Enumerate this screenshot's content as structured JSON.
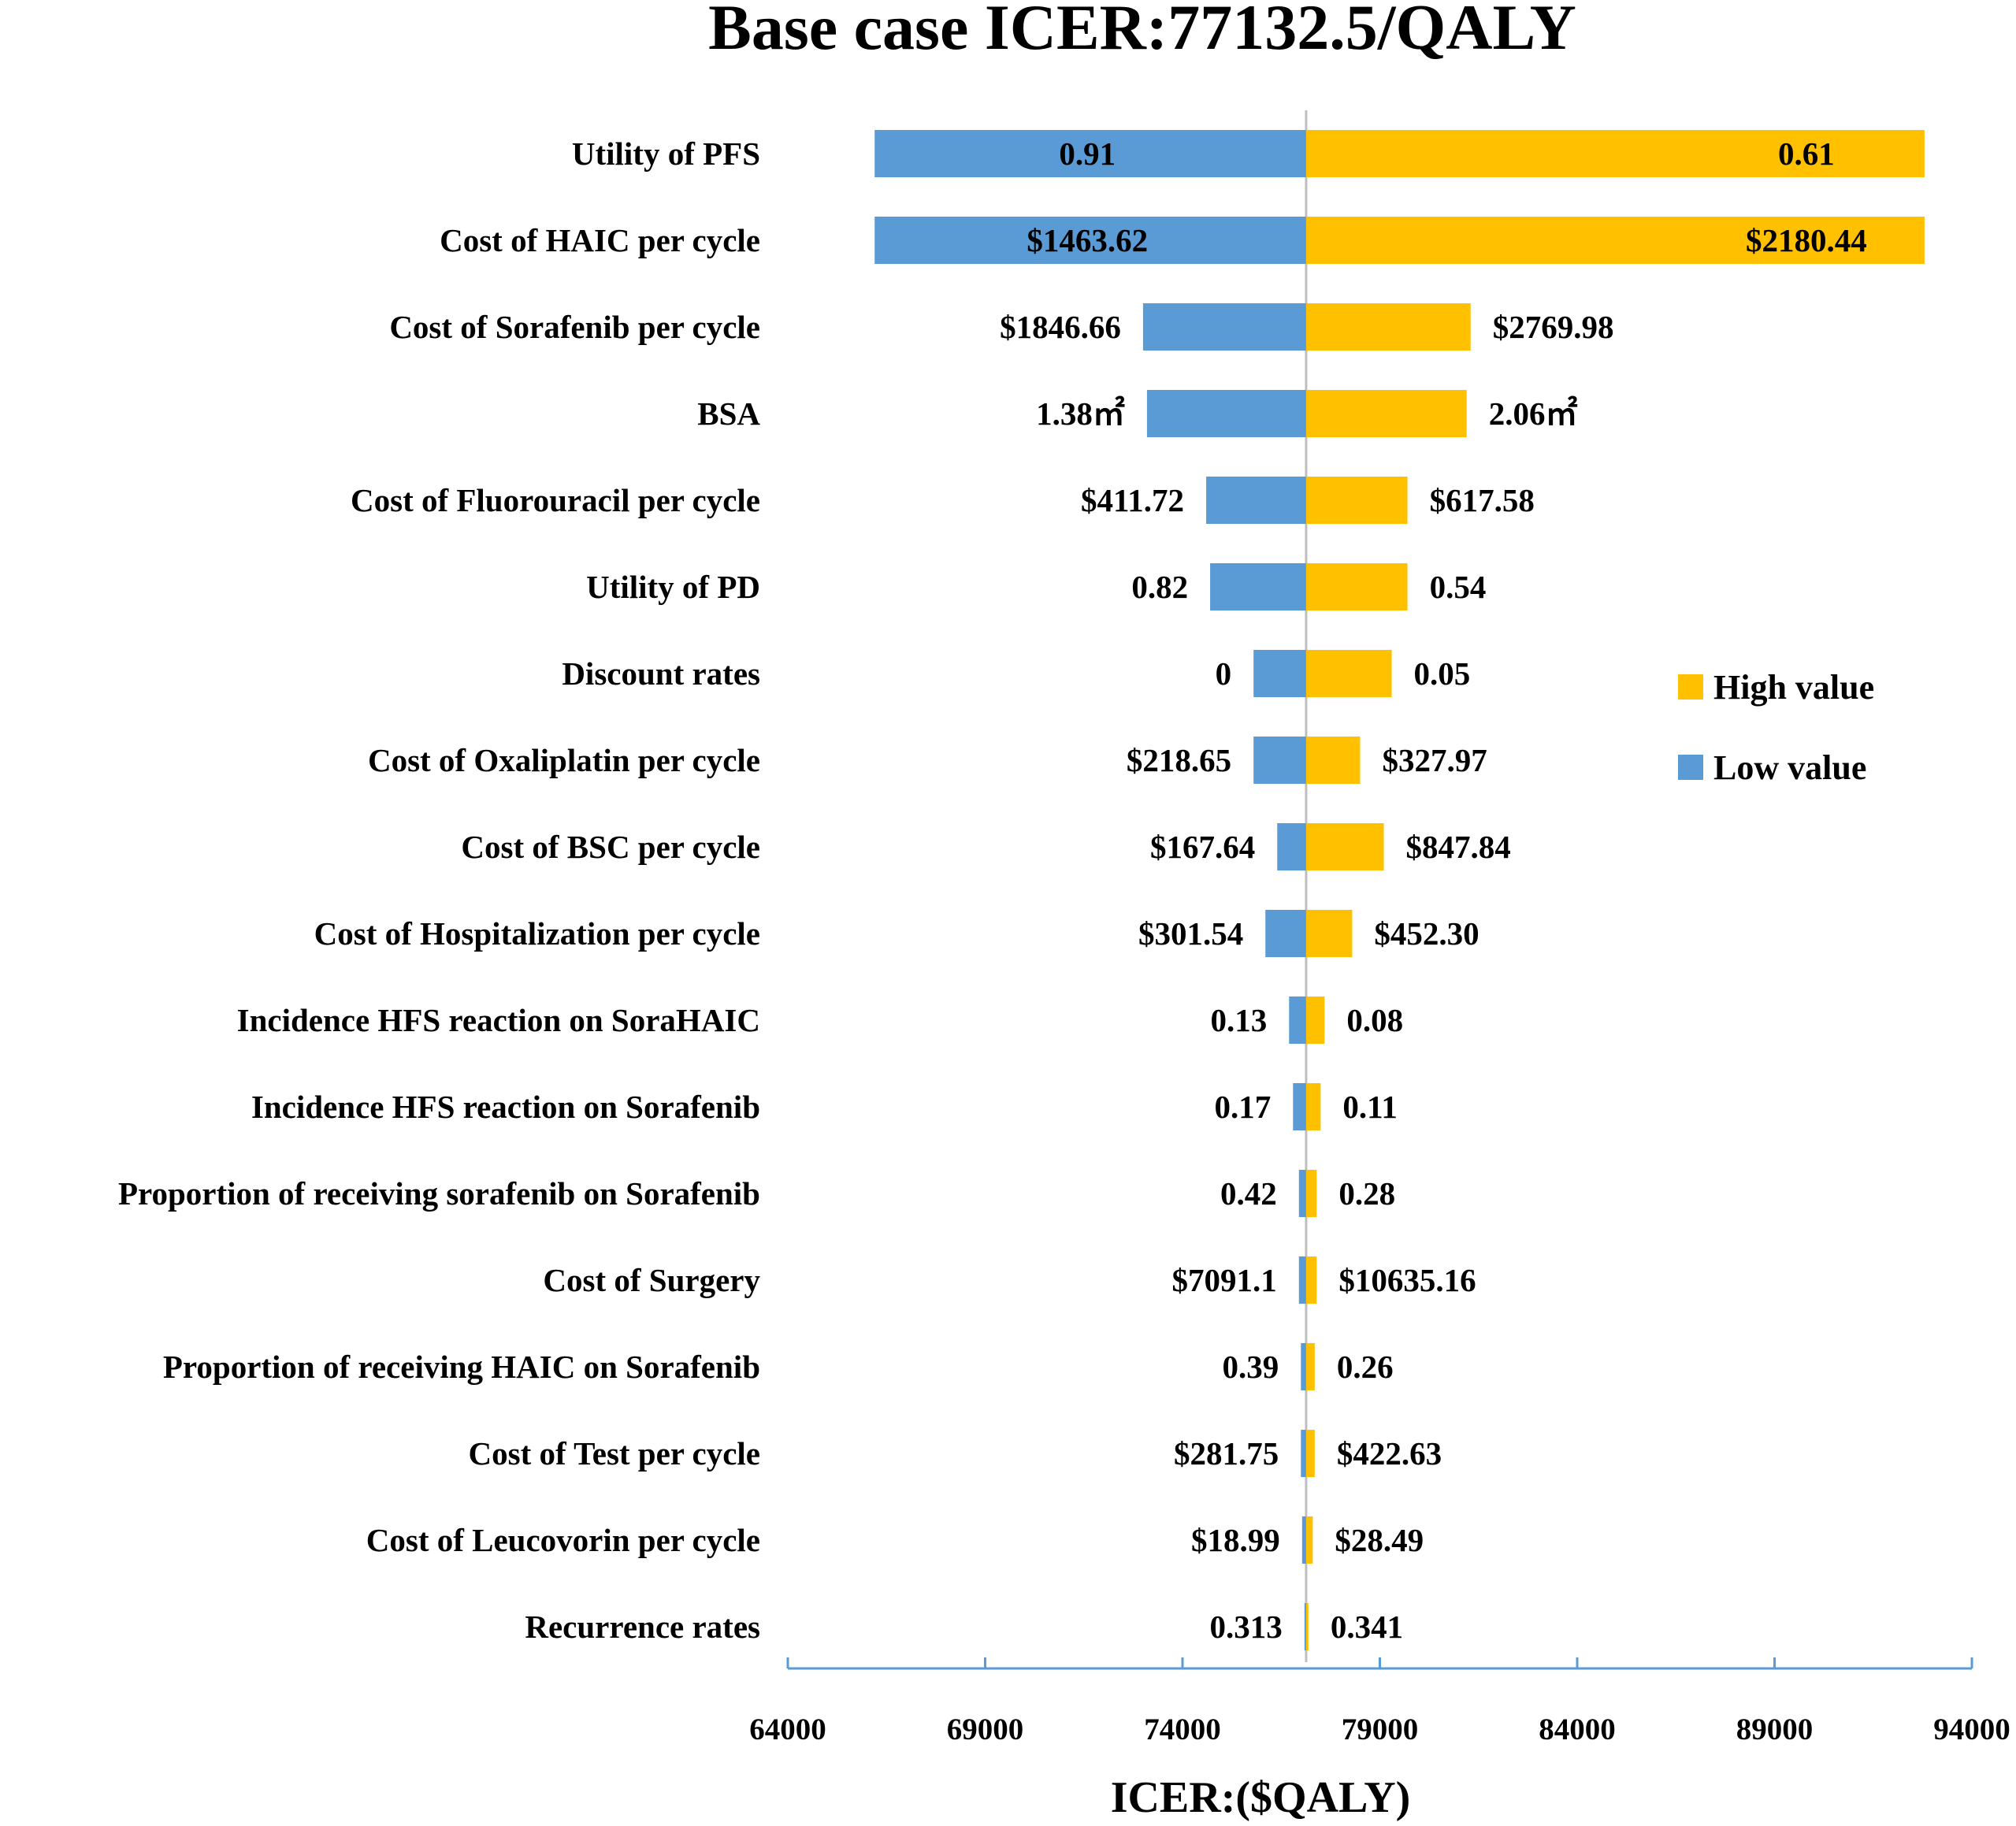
{
  "chart_data": {
    "type": "bar",
    "subtype": "tornado",
    "title": "Base case ICER:77132.5/QALY",
    "xlabel": "ICER:($QALY)",
    "ylabel": "",
    "baseline": 77132.5,
    "xlim": [
      64000,
      94000
    ],
    "xticks": [
      "64000",
      "69000",
      "74000",
      "79000",
      "84000",
      "89000",
      "94000"
    ],
    "grid": false,
    "legend_position": "right",
    "series": [
      {
        "name": "High value",
        "color": "#FFC000"
      },
      {
        "name": "Low value",
        "color": "#5B9BD5"
      }
    ],
    "rows": [
      {
        "parameter": "Utility of  PFS",
        "low_label": "0.91",
        "high_label": "0.61",
        "low_icer": 66200,
        "high_icer": 92800
      },
      {
        "parameter": "Cost of  HAIC per cycle",
        "low_label": "$1463.62",
        "high_label": "$2180.44",
        "low_icer": 66200,
        "high_icer": 92800
      },
      {
        "parameter": "Cost of  Sorafenib  per cycle",
        "low_label": "$1846.66",
        "high_label": "$2769.98",
        "low_icer": 73000,
        "high_icer": 81300
      },
      {
        "parameter": "BSA",
        "low_label": "1.38㎡",
        "high_label": "2.06㎡",
        "low_icer": 73100,
        "high_icer": 81200
      },
      {
        "parameter": "Cost of  Fluorouracil  per cycle",
        "low_label": "$411.72",
        "high_label": "$617.58",
        "low_icer": 74600,
        "high_icer": 79700
      },
      {
        "parameter": "Utility of  PD",
        "low_label": "0.82",
        "high_label": "0.54",
        "low_icer": 74700,
        "high_icer": 79700
      },
      {
        "parameter": "Discount rates",
        "low_label": "0",
        "high_label": "0.05",
        "low_icer": 75800,
        "high_icer": 79300
      },
      {
        "parameter": "Cost of  Oxaliplatin  per cycle",
        "low_label": "$218.65",
        "high_label": "$327.97",
        "low_icer": 75800,
        "high_icer": 78500
      },
      {
        "parameter": "Cost of  BSC  per cycle",
        "low_label": "$167.64",
        "high_label": "$847.84",
        "low_icer": 76400,
        "high_icer": 79100
      },
      {
        "parameter": "Cost of  Hospitalization  per cycle",
        "low_label": "$301.54",
        "high_label": "$452.30",
        "low_icer": 76100,
        "high_icer": 78300
      },
      {
        "parameter": "Incidence HFS reaction on  SoraHAIC",
        "low_label": "0.13",
        "high_label": "0.08",
        "low_icer": 76700,
        "high_icer": 77600
      },
      {
        "parameter": "Incidence HFS reaction on Sorafenib",
        "low_label": "0.17",
        "high_label": "0.11",
        "low_icer": 76800,
        "high_icer": 77500
      },
      {
        "parameter": "Proportion of receiving sorafenib on Sorafenib",
        "low_label": "0.42",
        "high_label": "0.28",
        "low_icer": 76950,
        "high_icer": 77400
      },
      {
        "parameter": "Cost of Surgery",
        "low_label": "$7091.1",
        "high_label": "$10635.16",
        "low_icer": 76950,
        "high_icer": 77400
      },
      {
        "parameter": "Proportion of receiving HAIC on Sorafenib",
        "low_label": "0.39",
        "high_label": "0.26",
        "low_icer": 77000,
        "high_icer": 77350
      },
      {
        "parameter": "Cost of  Test per cycle",
        "low_label": "$281.75",
        "high_label": "$422.63",
        "low_icer": 77000,
        "high_icer": 77350
      },
      {
        "parameter": "Cost of  Leucovorin per cycle",
        "low_label": "$18.99",
        "high_label": "$28.49",
        "low_icer": 77030,
        "high_icer": 77300
      },
      {
        "parameter": "Recurrence rates",
        "low_label": "0.313",
        "high_label": "0.341",
        "low_icer": 77090,
        "high_icer": 77190
      }
    ]
  }
}
